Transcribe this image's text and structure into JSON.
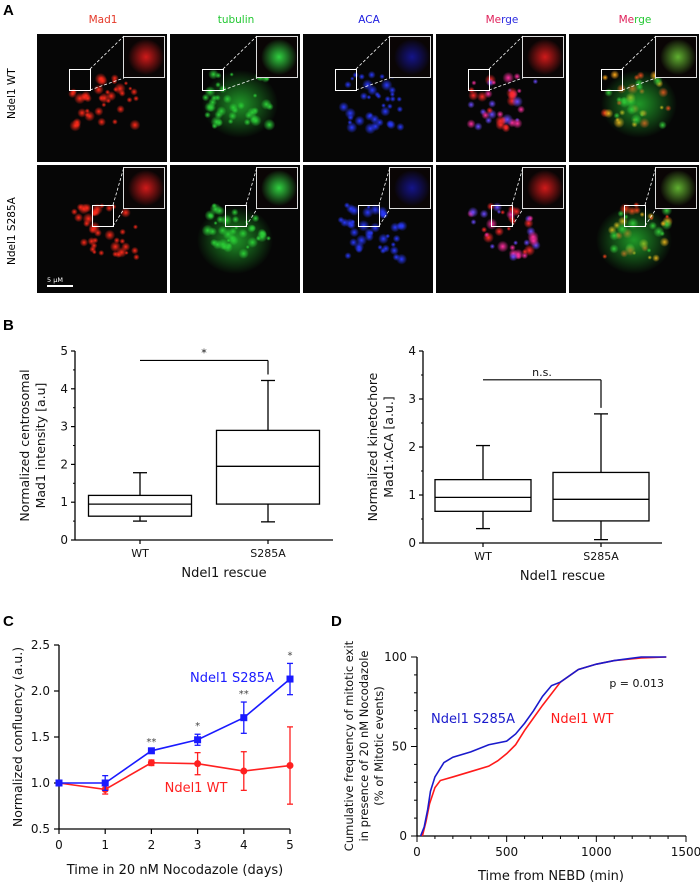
{
  "panel_a": {
    "label": "A",
    "channels": [
      {
        "name": "Mad1",
        "color": "#e53a2a",
        "merge_parts": null
      },
      {
        "name": "tubulin",
        "color": "#22c832",
        "merge_parts": null
      },
      {
        "name": "ACA",
        "color": "#2020e0",
        "merge_parts": null
      },
      {
        "name": "Merge",
        "color": "#e0205a",
        "merge_parts": [
          {
            "t": "Me",
            "c": "#e0205a"
          },
          {
            "t": "rge",
            "c": "#2a2ae0"
          }
        ]
      },
      {
        "name": "Merge",
        "color": "#e0205a",
        "merge_parts": [
          {
            "t": "Me",
            "c": "#e0205a"
          },
          {
            "t": "rge",
            "c": "#22c832"
          }
        ]
      }
    ],
    "rows": [
      "Ndel1 WT",
      "Ndel1 S285A"
    ],
    "scale_bar": "5 μM"
  },
  "chart_data": [
    {
      "panel": "B",
      "type": "box",
      "categories": [
        "WT",
        "S285A"
      ],
      "xlabel": "Ndel1 rescue",
      "ylabel": [
        "Normalized centrosomal",
        "Mad1 intensity [a.u]"
      ],
      "ylim": [
        0,
        5
      ],
      "yticks": [
        "0",
        "1",
        "2",
        "3",
        "4",
        "5"
      ],
      "boxes": [
        {
          "min": 0.5,
          "q1": 0.63,
          "median": 0.95,
          "q3": 1.18,
          "max": 1.78
        },
        {
          "min": 0.48,
          "q1": 0.95,
          "median": 1.95,
          "q3": 2.9,
          "max": 4.22
        }
      ],
      "significance": {
        "label": "*",
        "level": 4.75
      }
    },
    {
      "panel": "B",
      "type": "box",
      "categories": [
        "WT",
        "S285A"
      ],
      "xlabel": "Ndel1 rescue",
      "ylabel": [
        "Normalized kinetochore",
        "Mad1:ACA [a.u.]"
      ],
      "ylim": [
        0,
        4
      ],
      "yticks": [
        "0",
        "1",
        "2",
        "3",
        "4"
      ],
      "boxes": [
        {
          "min": 0.3,
          "q1": 0.66,
          "median": 0.95,
          "q3": 1.32,
          "max": 2.03
        },
        {
          "min": 0.07,
          "q1": 0.46,
          "median": 0.91,
          "q3": 1.47,
          "max": 2.69
        }
      ],
      "significance": {
        "label": "n.s.",
        "level": 3.4
      }
    },
    {
      "panel": "C",
      "type": "line",
      "x": [
        0,
        1,
        2,
        3,
        4,
        5
      ],
      "xlabel": "Time in 20 nM Nocodazole (days)",
      "ylabel": "Normalized confluency (a.u.)",
      "xlim": [
        0,
        5
      ],
      "ylim": [
        0.5,
        2.5
      ],
      "xticks": [
        "0",
        "1",
        "2",
        "3",
        "4",
        "5"
      ],
      "yticks": [
        "0.5",
        "1.0",
        "1.5",
        "2.0",
        "2.5"
      ],
      "series": [
        {
          "name": "Ndel1 S285A",
          "color": "#1a1aff",
          "values": [
            1.0,
            1.0,
            1.35,
            1.47,
            1.71,
            2.13
          ],
          "errors": [
            0.01,
            0.08,
            0.01,
            0.06,
            0.17,
            0.17
          ]
        },
        {
          "name": "Ndel1 WT",
          "color": "#ff2020",
          "values": [
            1.0,
            0.93,
            1.22,
            1.21,
            1.13,
            1.19
          ],
          "errors": [
            0.01,
            0.05,
            0.03,
            0.12,
            0.21,
            0.42
          ]
        }
      ],
      "annotations": [
        "",
        "",
        "**",
        "*",
        "**",
        "*"
      ]
    },
    {
      "panel": "D",
      "type": "line",
      "xlabel": "Time from NEBD (min)",
      "ylabel": [
        "Cumulative frequency of mitotic exit",
        "in presence of 20 nM Nocodazole",
        "(% of Mitotic events)"
      ],
      "xlim": [
        0,
        1500
      ],
      "ylim": [
        0,
        100
      ],
      "xticks": [
        "0",
        "500",
        "1000",
        "1500"
      ],
      "yticks": [
        "0",
        "50",
        "100"
      ],
      "annotation": "p = 0.013",
      "series": [
        {
          "name": "Ndel1 S285A",
          "color": "#1a1acc",
          "x": [
            20,
            40,
            60,
            75,
            100,
            150,
            200,
            300,
            400,
            500,
            550,
            600,
            650,
            700,
            750,
            800,
            900,
            1000,
            1100,
            1250,
            1390
          ],
          "y": [
            0,
            5,
            15,
            25,
            33,
            41,
            44,
            47,
            51,
            53,
            57,
            63,
            70,
            78,
            84,
            86,
            93,
            96,
            98,
            100,
            100
          ]
        },
        {
          "name": "Ndel1 WT",
          "color": "#ff1a1a",
          "x": [
            30,
            50,
            70,
            100,
            130,
            200,
            300,
            400,
            450,
            500,
            550,
            600,
            650,
            700,
            800,
            900,
            1000,
            1100,
            1250,
            1390
          ],
          "y": [
            0,
            8,
            18,
            27,
            31,
            33,
            36,
            39,
            42,
            46,
            51,
            59,
            66,
            73,
            86,
            93,
            96,
            98,
            99.5,
            100
          ]
        }
      ]
    }
  ],
  "panel_labels": {
    "b": "B",
    "c": "C",
    "d": "D"
  }
}
